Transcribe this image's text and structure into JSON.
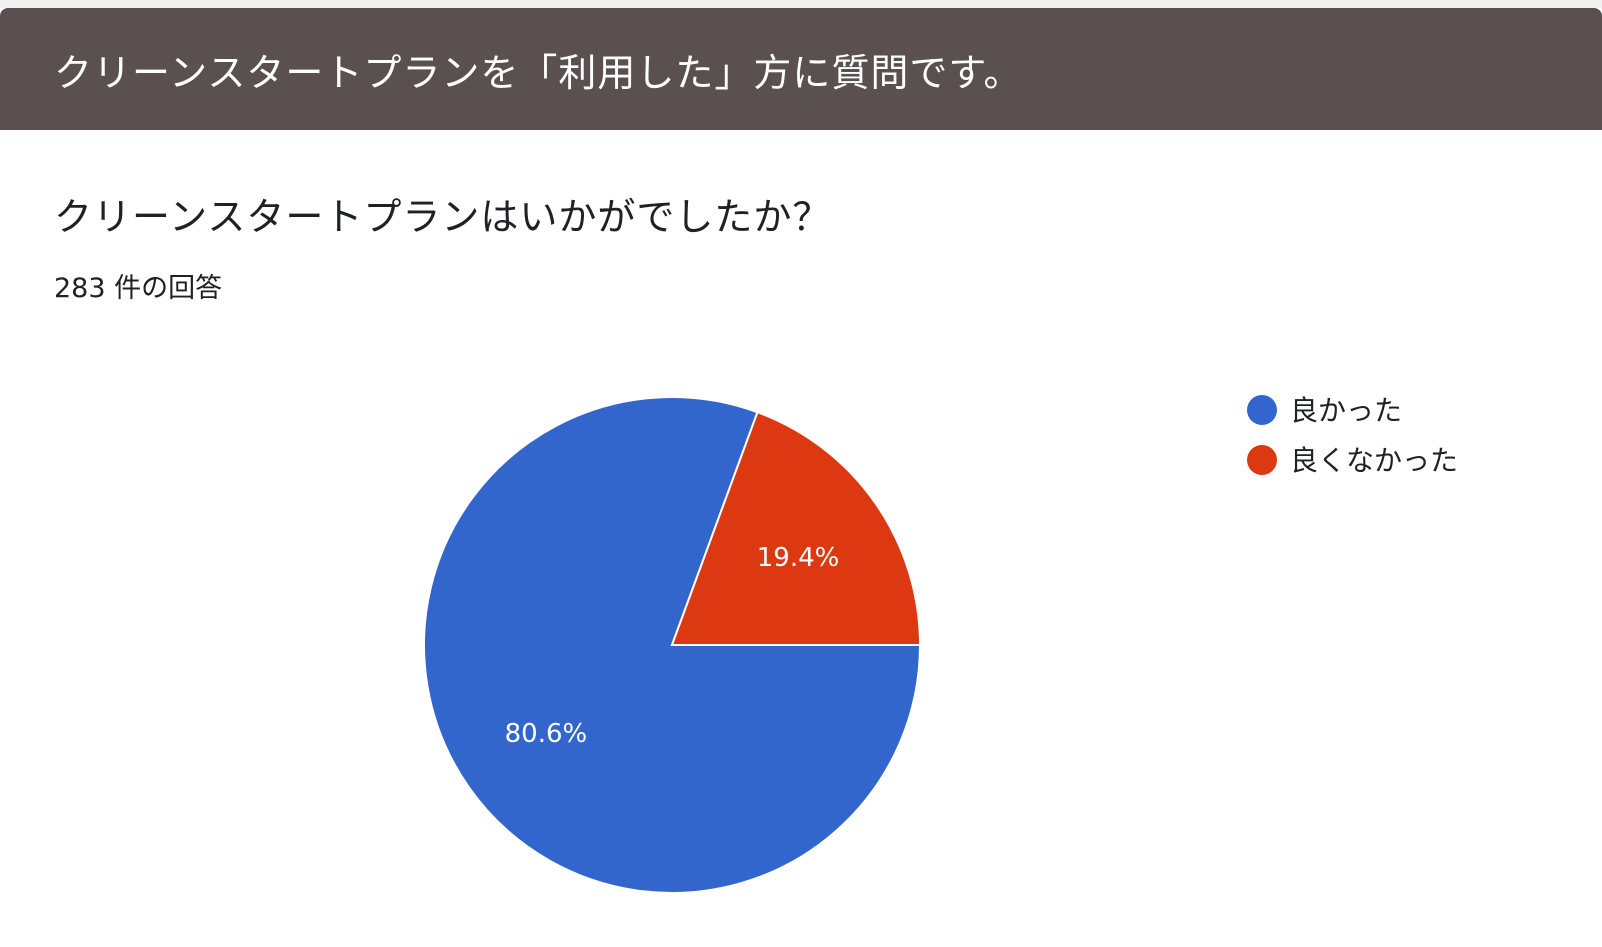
{
  "section": {
    "title": "クリーンスタートプランを「利用した」方に質問です。"
  },
  "question": {
    "title": "クリーンスタートプランはいかがでしたか？",
    "response_count": "283 件の回答"
  },
  "chart_data": {
    "type": "pie",
    "categories": [
      "良かった",
      "良くなかった"
    ],
    "values": [
      80.6,
      19.4
    ],
    "labels": [
      "80.6%",
      "19.4%"
    ],
    "colors": [
      "#3366cc",
      "#dc3912"
    ],
    "legend_position": "right"
  }
}
